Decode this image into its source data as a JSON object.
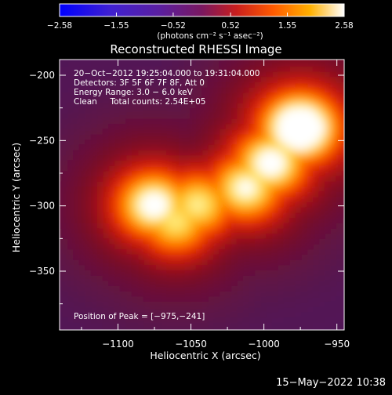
{
  "chart_data": {
    "type": "heatmap",
    "title": "Reconstructed RHESSI Image",
    "xlabel": "Heliocentric X (arcsec)",
    "ylabel": "Heliocentric Y (arcsec)",
    "xlim": [
      -1140,
      -945
    ],
    "ylim": [
      -395,
      -188
    ],
    "x_ticks": [
      -1100,
      -1050,
      -1000,
      -950
    ],
    "y_ticks": [
      -200,
      -250,
      -300,
      -350
    ],
    "x_tick_labels": [
      "−1100",
      "−1050",
      "−1000",
      "−950"
    ],
    "y_tick_labels": [
      "−200",
      "−250",
      "−300",
      "−350"
    ],
    "colorbar": {
      "min": -2.58,
      "max": 2.58,
      "tick_values": [
        -2.58,
        -1.55,
        -0.52,
        0.52,
        1.55,
        2.58
      ],
      "tick_labels": [
        "−2.58",
        "−1.55",
        "−0.52",
        "0.52",
        "1.55",
        "2.58"
      ],
      "unit_label": "(photons cm⁻² s⁻¹ asec⁻²)"
    },
    "annotations": {
      "time_range": "20−Oct−2012 19:25:04.000 to 19:31:04.000",
      "detectors": "Detectors: 3F 5F 6F 7F 8F, Att 0",
      "energy_range": "Energy Range: 3.0 − 6.0 keV",
      "clean_counts": "Clean     Total counts: 2.54E+05",
      "peak_position": "Position of Peak = [−975,−241]"
    },
    "sources": [
      {
        "x": -975,
        "y": -241,
        "intensity": 2.58
      },
      {
        "x": -995,
        "y": -268,
        "intensity": 1.9
      },
      {
        "x": -1012,
        "y": -287,
        "intensity": 1.7
      },
      {
        "x": -1045,
        "y": -300,
        "intensity": 1.5
      },
      {
        "x": -1075,
        "y": -300,
        "intensity": 1.9
      },
      {
        "x": -1060,
        "y": -313,
        "intensity": 1.45
      }
    ],
    "background": -0.9
  },
  "footer": {
    "timestamp": "15−May−2022 10:38"
  }
}
